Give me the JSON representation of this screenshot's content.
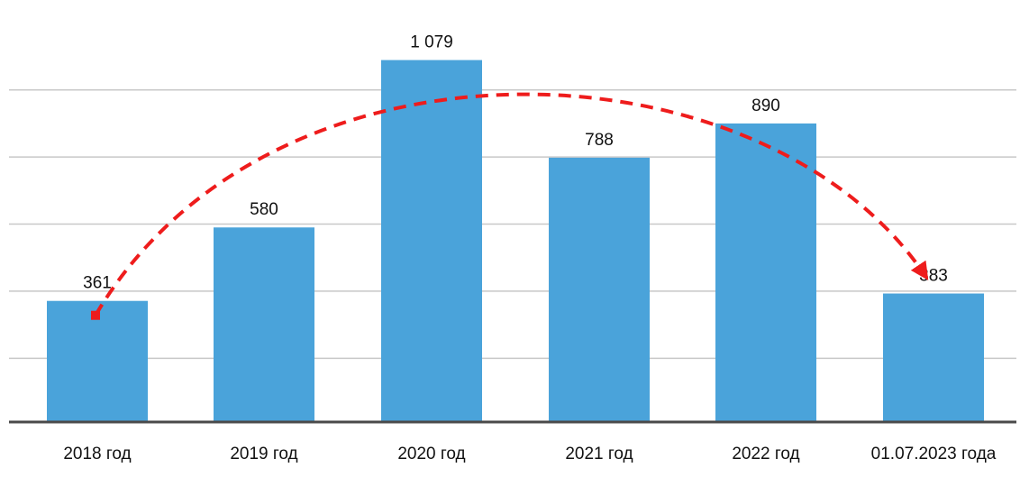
{
  "chart_data": {
    "type": "bar",
    "categories": [
      "2018 год",
      "2019 год",
      "2020 год",
      "2021 год",
      "2022 год",
      "01.07.2023 года"
    ],
    "values": [
      361,
      580,
      1079,
      788,
      890,
      383
    ],
    "value_labels": [
      "361",
      "580",
      "1 079",
      "788",
      "890",
      "383"
    ],
    "title": "",
    "xlabel": "",
    "ylabel": "",
    "ylim": [
      0,
      1250
    ],
    "grid": true,
    "legend": "none",
    "annotation": "red dashed trend arrow from 2018 bar peaking near 2020–2021 and ending at 01.07.2023 bar",
    "colors": {
      "bar": "#4aa3da",
      "trend": "#ee1c1c",
      "baseline": "#4a4a4a",
      "grid": "#c8c8c8"
    }
  }
}
